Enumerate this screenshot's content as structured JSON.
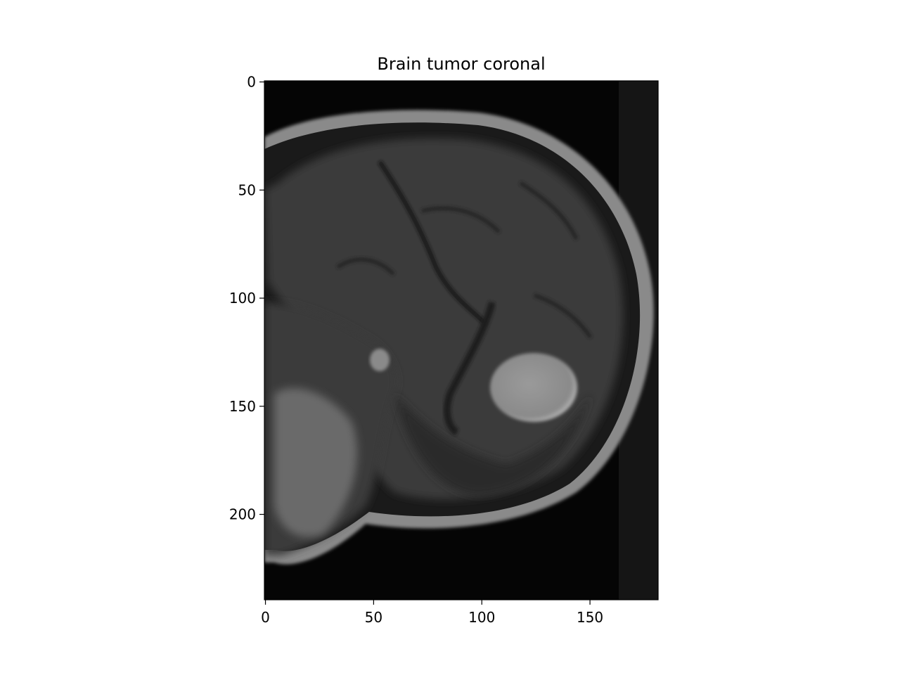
{
  "chart_data": {
    "type": "image",
    "title": "Brain tumor coronal",
    "xlabel": "",
    "ylabel": "",
    "xlim": [
      -0.5,
      181.5
    ],
    "ylim": [
      239.5,
      -0.5
    ],
    "xticks": [
      0,
      50,
      100,
      150
    ],
    "yticks": [
      0,
      50,
      100,
      150,
      200
    ],
    "colormap": "gray",
    "grid": false,
    "legend": "none"
  }
}
